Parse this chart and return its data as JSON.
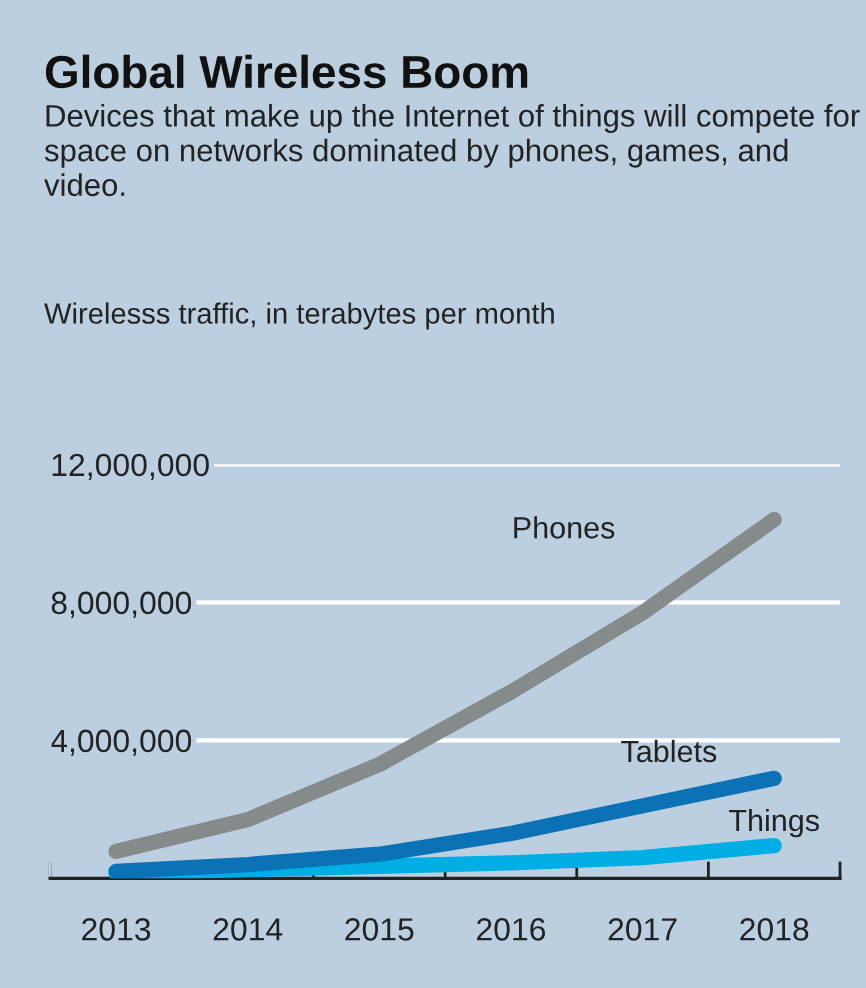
{
  "chart_data": {
    "type": "line",
    "title": "Global Wireless Boom",
    "subtitle": "Devices that make up the Internet of things will compete for space on networks dominated by phones, games, and video.",
    "ylabel": "Wirelesss traffic, in terabytes per month",
    "categories": [
      "2013",
      "2014",
      "2015",
      "2016",
      "2017",
      "2018"
    ],
    "series": [
      {
        "name": "Phones",
        "color": "#858a8a",
        "values": [
          780000,
          1700000,
          3300000,
          5400000,
          7700000,
          10400000
        ]
      },
      {
        "name": "Tablets",
        "color": "#0a72b5",
        "values": [
          200000,
          400000,
          700000,
          1300000,
          2100000,
          2900000
        ]
      },
      {
        "name": "Things",
        "color": "#00aee6",
        "values": [
          150000,
          250000,
          350000,
          450000,
          600000,
          950000
        ]
      }
    ],
    "ylim": [
      0,
      12000000
    ],
    "yticks": [
      {
        "value": 4000000,
        "label": "4,000,000"
      },
      {
        "value": 8000000,
        "label": "8,000,000"
      },
      {
        "value": 12000000,
        "label": "12,000,000"
      }
    ],
    "grid": "y",
    "legend": false,
    "marker": "none",
    "line_style": "solid"
  }
}
